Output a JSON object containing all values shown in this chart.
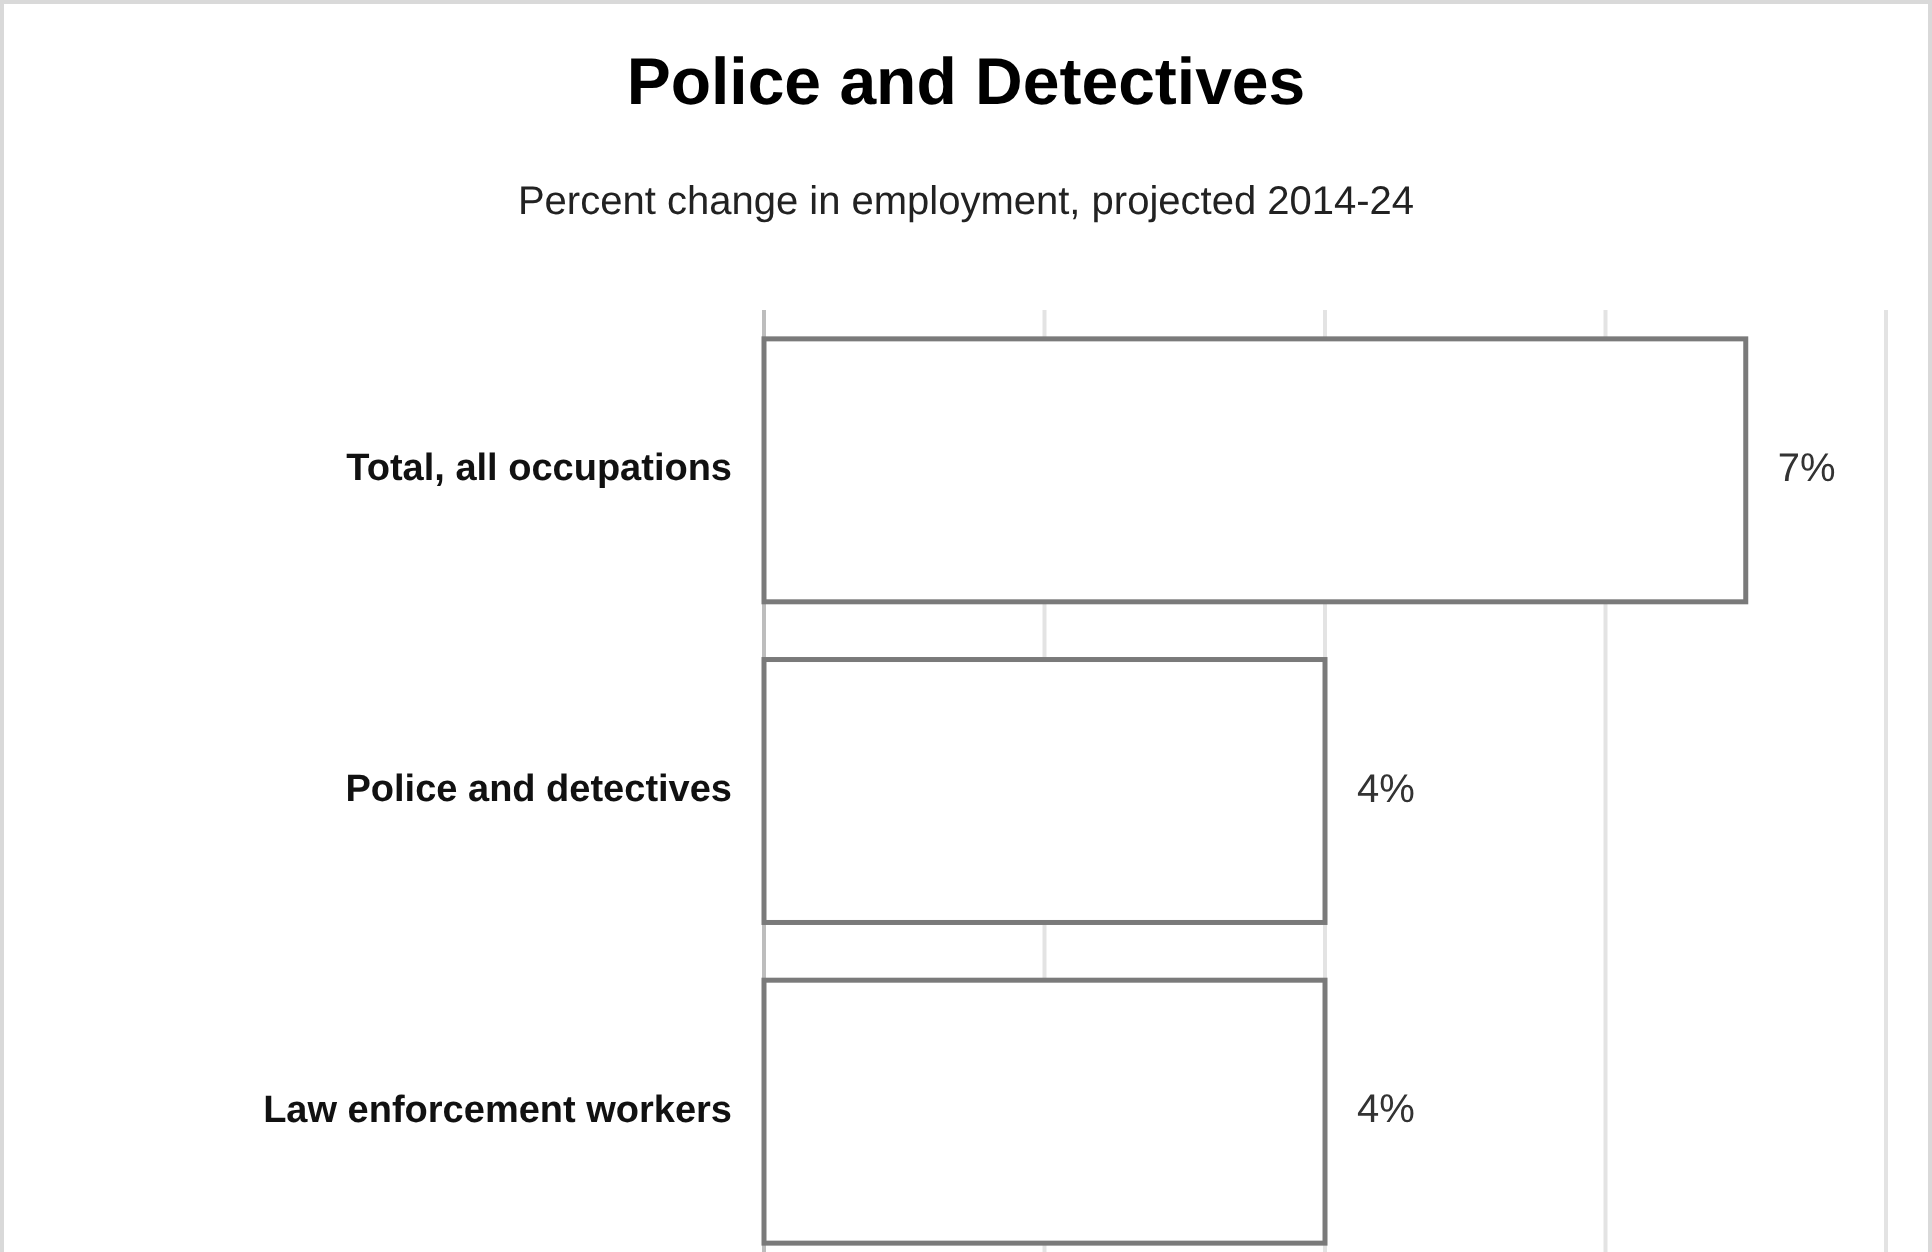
{
  "chart_data": {
    "type": "bar",
    "orientation": "horizontal",
    "title": "Police and Detectives",
    "subtitle": "Percent change in employment, projected 2014-24",
    "categories": [
      "Total, all occupations",
      "Police and detectives",
      "Law enforcement workers"
    ],
    "values": [
      7,
      4,
      4
    ],
    "value_labels": [
      "7%",
      "4%",
      "4%"
    ],
    "color": "#ffffff",
    "xlim": [
      0,
      8
    ],
    "xticks": [
      {
        "value": 0,
        "label": null
      },
      {
        "value": 2,
        "label": null
      },
      {
        "value": 4,
        "label": null
      },
      {
        "value": 6,
        "label": null
      },
      {
        "value": 8,
        "label": null
      }
    ],
    "grid": "x",
    "tick_labels": "y"
  }
}
